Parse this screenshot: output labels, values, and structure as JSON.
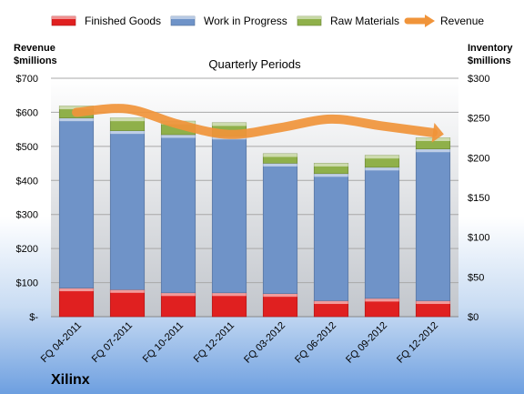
{
  "chart_data": {
    "type": "bar",
    "stacked": true,
    "title": "Quarterly Periods",
    "company": "Xilinx",
    "y_left_label": [
      "Revenue",
      "$millions"
    ],
    "y_right_label": [
      "Inventory",
      "$millions"
    ],
    "y_left_ticks": [
      "$-",
      "$100",
      "$200",
      "$300",
      "$400",
      "$500",
      "$600",
      "$700"
    ],
    "y_right_ticks": [
      "$0",
      "$50",
      "$100",
      "$150",
      "$200",
      "$250",
      "$300"
    ],
    "ylim_left": [
      0,
      700
    ],
    "ylim_right": [
      0,
      300
    ],
    "grid": true,
    "legend_position": "top",
    "categories": [
      "FQ 04-2011",
      "FQ 07-2011",
      "FQ 10-2011",
      "FQ 12-2011",
      "FQ 03-2012",
      "FQ 06-2012",
      "FQ 09-2012",
      "FQ 12-2012"
    ],
    "series": [
      {
        "name": "Finished Goods",
        "axis": "right",
        "color": "#e02020",
        "values": [
          36,
          34,
          30,
          30,
          29,
          20,
          23,
          20
        ]
      },
      {
        "name": "Work in Progress",
        "axis": "right",
        "color": "#6f93c8",
        "values": [
          214,
          200,
          199,
          197,
          164,
          160,
          165,
          191
        ]
      },
      {
        "name": "Raw Materials",
        "axis": "right",
        "color": "#8fb04a",
        "values": [
          15,
          16,
          17,
          17,
          12,
          13,
          15,
          14
        ]
      },
      {
        "name": "Revenue",
        "axis": "left",
        "type": "line",
        "color": "#f0943a",
        "values": [
          600,
          610,
          565,
          535,
          555,
          580,
          560,
          540
        ]
      }
    ]
  }
}
